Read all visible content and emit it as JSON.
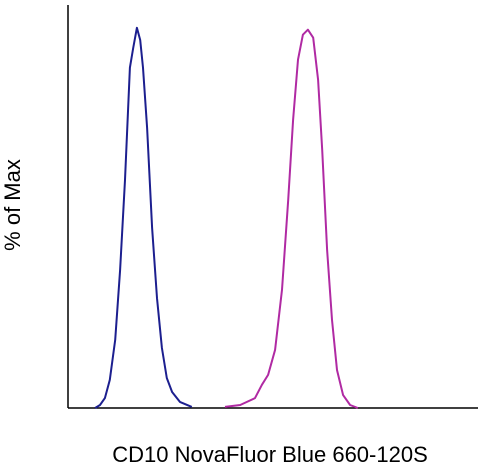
{
  "chart_data": {
    "type": "line",
    "ylabel": "% of Max",
    "xlabel": "CD10 NovaFluor Blue 660-120S",
    "xlim": [
      0,
      100
    ],
    "ylim": [
      0,
      106
    ],
    "series": [
      {
        "color": "#1c1f8f",
        "x": [
          6.6,
          7.8,
          9.0,
          10.2,
          11.5,
          12.7,
          13.9,
          15.1,
          15.9,
          16.8,
          17.6,
          18.3,
          19.3,
          20.5,
          21.7,
          22.9,
          24.1,
          25.4,
          27.3,
          30.2
        ],
        "values": [
          0,
          0.8,
          2.6,
          7.4,
          17.9,
          36.3,
          60,
          89.5,
          94.7,
          100,
          96.8,
          89.5,
          73.7,
          47.4,
          28.9,
          15.8,
          7.9,
          4.2,
          1.6,
          0.3
        ]
      },
      {
        "color": "#b02aa3",
        "x": [
          38.3,
          42.0,
          45.6,
          47.3,
          48.8,
          50.5,
          52.2,
          53.7,
          54.9,
          56.1,
          57.3,
          58.5,
          59.8,
          61.0,
          62.0,
          63.2,
          64.4,
          65.6,
          67.1,
          68.8,
          70.7
        ],
        "values": [
          0.3,
          0.8,
          2.6,
          6.1,
          8.7,
          15.3,
          31.1,
          54.7,
          75.8,
          91.6,
          98.2,
          99.5,
          97.4,
          86.3,
          67.9,
          41.6,
          23.2,
          10.0,
          3.4,
          0.8,
          0
        ]
      }
    ]
  }
}
